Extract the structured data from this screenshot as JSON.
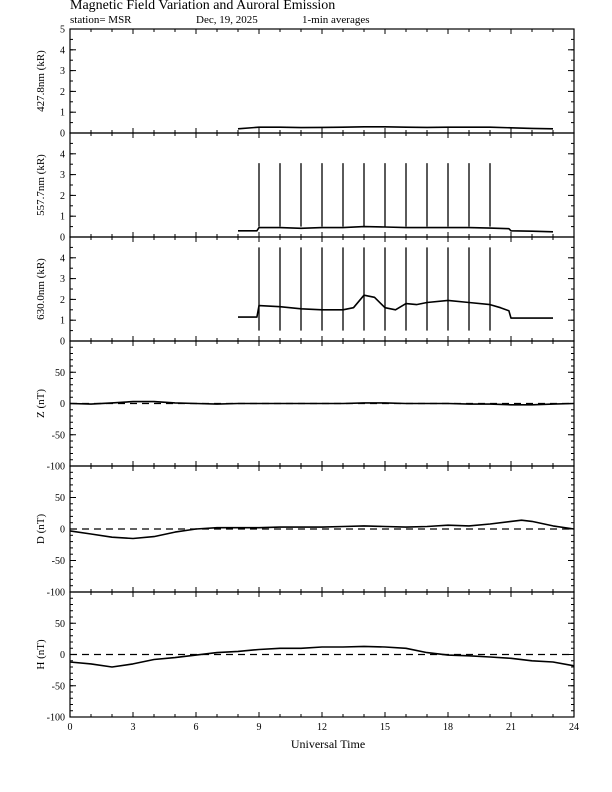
{
  "header": {
    "title": "Magnetic Field Variation and Auroral Emission",
    "station": "station= MSR",
    "date": "Dec, 19, 2025",
    "averaging": "1-min averages"
  },
  "chart_data": {
    "type": "line",
    "xlabel": "Universal Time",
    "xlim": [
      0,
      24
    ],
    "xticks": [
      0,
      3,
      6,
      9,
      12,
      15,
      18,
      21,
      24
    ],
    "panels": [
      {
        "id": "427",
        "ylabel": "427.8nm (kR)",
        "ylim": [
          0,
          5
        ],
        "yticks": [
          0,
          1,
          2,
          3,
          4,
          5
        ],
        "zero_line": false,
        "series": [
          {
            "x": [
              8,
              9,
              10,
              11,
              12,
              13,
              14,
              15,
              16,
              17,
              18,
              19,
              20,
              21,
              22,
              23
            ],
            "y": [
              0.2,
              0.28,
              0.28,
              0.26,
              0.27,
              0.28,
              0.3,
              0.3,
              0.28,
              0.27,
              0.28,
              0.28,
              0.28,
              0.25,
              0.22,
              0.2
            ]
          }
        ]
      },
      {
        "id": "557",
        "ylabel": "557.7nm (kR)",
        "ylim": [
          0,
          5
        ],
        "yticks": [
          0,
          1,
          2,
          3,
          4
        ],
        "zero_line": false,
        "spikes": [
          9,
          10,
          11,
          12,
          13,
          14,
          15,
          16,
          17,
          18,
          19,
          20
        ],
        "spike_value": 3.55,
        "series": [
          {
            "x": [
              8,
              8.9,
              9,
              10,
              11,
              12,
              13,
              14,
              15,
              16,
              17,
              18,
              19,
              20,
              20.9,
              21,
              22,
              23
            ],
            "y": [
              0.3,
              0.3,
              0.45,
              0.45,
              0.42,
              0.45,
              0.45,
              0.5,
              0.48,
              0.45,
              0.45,
              0.45,
              0.45,
              0.43,
              0.4,
              0.3,
              0.28,
              0.25
            ]
          }
        ]
      },
      {
        "id": "630",
        "ylabel": "630.0nm (kR)",
        "ylim": [
          0,
          5
        ],
        "yticks": [
          0,
          1,
          2,
          3,
          4
        ],
        "zero_line": false,
        "spikes": [
          9,
          10,
          11,
          12,
          13,
          14,
          15,
          16,
          17,
          18,
          19,
          20
        ],
        "spike_value": 4.5,
        "series": [
          {
            "x": [
              8,
              8.9,
              9,
              10,
              11,
              12,
              13,
              13.5,
              14,
              14.5,
              15,
              15.5,
              16,
              16.5,
              17,
              18,
              19,
              20,
              20.5,
              20.9,
              21,
              22,
              23
            ],
            "y": [
              1.15,
              1.15,
              1.7,
              1.65,
              1.55,
              1.5,
              1.5,
              1.6,
              2.2,
              2.1,
              1.6,
              1.5,
              1.8,
              1.75,
              1.85,
              1.95,
              1.85,
              1.75,
              1.6,
              1.45,
              1.1,
              1.1,
              1.1
            ]
          }
        ]
      },
      {
        "id": "Z",
        "ylabel": "Z (nT)",
        "ylim": [
          -100,
          100
        ],
        "yticks": [
          -100,
          -50,
          0,
          50
        ],
        "zero_line": true,
        "series": [
          {
            "x": [
              0,
              1,
              2,
              3,
              4,
              5,
              6,
              7,
              8,
              9,
              10,
              11,
              12,
              13,
              14,
              15,
              16,
              17,
              18,
              19,
              20,
              21,
              22,
              23,
              24
            ],
            "y": [
              0,
              -1,
              1,
              3,
              3,
              1,
              0,
              -1,
              0,
              0,
              0,
              0,
              0,
              0,
              1,
              1,
              0,
              0,
              0,
              -1,
              -1,
              -2,
              -2,
              -1,
              0
            ]
          }
        ]
      },
      {
        "id": "D",
        "ylabel": "D (nT)",
        "ylim": [
          -100,
          100
        ],
        "yticks": [
          -100,
          -50,
          0,
          50
        ],
        "zero_line": true,
        "series": [
          {
            "x": [
              0,
              1,
              2,
              3,
              4,
              5,
              6,
              7,
              8,
              9,
              10,
              11,
              12,
              13,
              14,
              15,
              16,
              17,
              18,
              19,
              20,
              21,
              21.5,
              22,
              23,
              24
            ],
            "y": [
              -3,
              -8,
              -13,
              -15,
              -12,
              -5,
              0,
              2,
              2,
              2,
              3,
              3,
              3,
              4,
              5,
              4,
              3,
              4,
              6,
              5,
              8,
              12,
              14,
              12,
              5,
              0
            ]
          }
        ]
      },
      {
        "id": "H",
        "ylabel": "H (nT)",
        "ylim": [
          -100,
          100
        ],
        "yticks": [
          -100,
          -50,
          0,
          50
        ],
        "zero_line": true,
        "series": [
          {
            "x": [
              0,
              1,
              2,
              3,
              4,
              5,
              6,
              7,
              8,
              9,
              10,
              11,
              12,
              13,
              14,
              15,
              16,
              17,
              18,
              19,
              20,
              21,
              22,
              23,
              24
            ],
            "y": [
              -12,
              -15,
              -20,
              -15,
              -8,
              -5,
              -1,
              3,
              5,
              8,
              10,
              10,
              12,
              12,
              13,
              12,
              10,
              3,
              -1,
              -2,
              -4,
              -6,
              -10,
              -12,
              -18
            ]
          }
        ]
      }
    ]
  }
}
